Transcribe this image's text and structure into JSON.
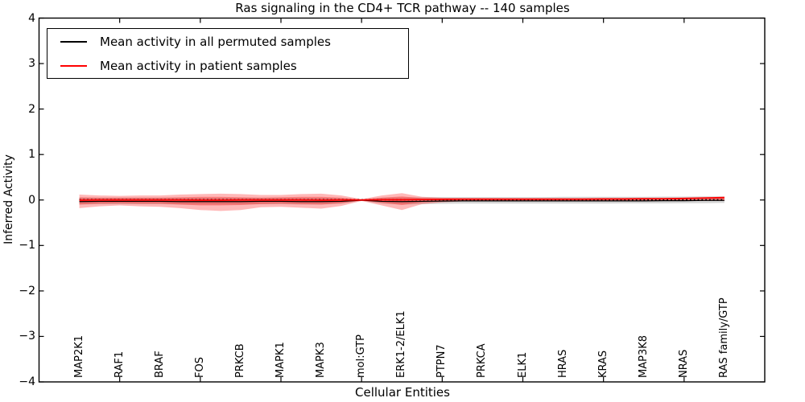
{
  "figure": {
    "title": "Ras signaling in the CD4+ TCR pathway -- 140 samples",
    "xlabel": "Cellular Entities",
    "ylabel": "Inferred Activity"
  },
  "legend": {
    "items": [
      {
        "label": "Mean activity in all permuted samples",
        "color": "#000000"
      },
      {
        "label": "Mean activity in patient samples",
        "color": "#ff0000"
      }
    ]
  },
  "chart_data": {
    "type": "line",
    "title": "Ras signaling in the CD4+ TCR pathway -- 140 samples",
    "xlabel": "Cellular Entities",
    "ylabel": "Inferred Activity",
    "ylim": [
      -4,
      4
    ],
    "xlim": [
      0,
      18
    ],
    "grid": false,
    "legend_position": "upper left",
    "yticks": [
      {
        "v": 4,
        "label": "4"
      },
      {
        "v": 3,
        "label": "3"
      },
      {
        "v": 2,
        "label": "2"
      },
      {
        "v": 1,
        "label": "1"
      },
      {
        "v": 0,
        "label": "0"
      },
      {
        "v": -1,
        "label": "−1"
      },
      {
        "v": -2,
        "label": "−2"
      },
      {
        "v": -3,
        "label": "−3"
      },
      {
        "v": -4,
        "label": "−4"
      }
    ],
    "xticks_frame": [
      2,
      4,
      6,
      8,
      10,
      12,
      14,
      16
    ],
    "entities": [
      {
        "pos": 1,
        "label": "MAP2K1"
      },
      {
        "pos": 2,
        "label": "RAF1"
      },
      {
        "pos": 3,
        "label": "BRAF"
      },
      {
        "pos": 4,
        "label": "FOS"
      },
      {
        "pos": 5,
        "label": "PRKCB"
      },
      {
        "pos": 6,
        "label": "MAPK1"
      },
      {
        "pos": 7,
        "label": "MAPK3"
      },
      {
        "pos": 8,
        "label": "mol:GTP"
      },
      {
        "pos": 9,
        "label": "ERK1-2/ELK1"
      },
      {
        "pos": 10,
        "label": "PTPN7"
      },
      {
        "pos": 11,
        "label": "PRKCA"
      },
      {
        "pos": 12,
        "label": "ELK1"
      },
      {
        "pos": 13,
        "label": "HRAS"
      },
      {
        "pos": 14,
        "label": "KRAS"
      },
      {
        "pos": 15,
        "label": "MAP3K8"
      },
      {
        "pos": 16,
        "label": "NRAS"
      },
      {
        "pos": 17,
        "label": "RAS family/GTP"
      }
    ],
    "x": [
      1,
      1.5,
      2,
      2.5,
      3,
      3.5,
      4,
      4.5,
      5,
      5.5,
      6,
      6.5,
      7,
      7.5,
      8,
      8.5,
      9,
      9.5,
      10,
      10.5,
      11,
      11.5,
      12,
      12.5,
      13,
      13.5,
      14,
      14.5,
      15,
      15.5,
      16,
      16.5,
      17
    ],
    "series": [
      {
        "name": "permuted_band",
        "kind": "band",
        "upper": [
          0.05,
          0.05,
          0.05,
          0.05,
          0.05,
          0.05,
          0.05,
          0.05,
          0.05,
          0.05,
          0.05,
          0.05,
          0.05,
          0.04,
          0.01,
          0.05,
          0.06,
          0.06,
          0.065,
          0.065,
          0.065,
          0.065,
          0.065,
          0.065,
          0.07,
          0.07,
          0.07,
          0.07,
          0.07,
          0.075,
          0.075,
          0.08,
          0.08
        ],
        "lower": [
          -0.1,
          -0.09,
          -0.09,
          -0.09,
          -0.09,
          -0.1,
          -0.1,
          -0.1,
          -0.1,
          -0.09,
          -0.09,
          -0.1,
          -0.1,
          -0.08,
          -0.015,
          -0.08,
          -0.1,
          -0.09,
          -0.085,
          -0.08,
          -0.08,
          -0.08,
          -0.08,
          -0.08,
          -0.08,
          -0.08,
          -0.08,
          -0.075,
          -0.075,
          -0.075,
          -0.07,
          -0.07,
          -0.065
        ]
      },
      {
        "name": "patient_band_outer",
        "kind": "band",
        "upper": [
          0.12,
          0.1,
          0.09,
          0.1,
          0.1,
          0.12,
          0.13,
          0.14,
          0.13,
          0.11,
          0.11,
          0.13,
          0.14,
          0.1,
          0.02,
          0.1,
          0.15,
          0.07,
          0.05,
          0.04,
          0.04,
          0.035,
          0.035,
          0.035,
          0.035,
          0.035,
          0.035,
          0.035,
          0.04,
          0.04,
          0.045,
          0.05,
          0.06
        ],
        "lower": [
          -0.18,
          -0.14,
          -0.12,
          -0.14,
          -0.15,
          -0.18,
          -0.22,
          -0.24,
          -0.22,
          -0.16,
          -0.15,
          -0.17,
          -0.19,
          -0.13,
          -0.02,
          -0.12,
          -0.22,
          -0.09,
          -0.05,
          -0.03,
          -0.03,
          -0.025,
          -0.02,
          -0.02,
          -0.02,
          -0.02,
          -0.02,
          -0.02,
          -0.02,
          -0.015,
          -0.015,
          -0.01,
          -0.01
        ]
      },
      {
        "name": "patient_band_inner",
        "kind": "band",
        "upper": [
          0.06,
          0.05,
          0.05,
          0.05,
          0.05,
          0.06,
          0.07,
          0.07,
          0.06,
          0.05,
          0.06,
          0.07,
          0.07,
          0.05,
          0.01,
          0.05,
          0.08,
          0.04,
          0.03,
          0.03,
          0.03,
          0.03,
          0.03,
          0.03,
          0.03,
          0.03,
          0.03,
          0.03,
          0.03,
          0.03,
          0.035,
          0.04,
          0.05
        ],
        "lower": [
          -0.1,
          -0.08,
          -0.07,
          -0.08,
          -0.08,
          -0.1,
          -0.12,
          -0.12,
          -0.11,
          -0.09,
          -0.08,
          -0.09,
          -0.1,
          -0.07,
          -0.01,
          -0.06,
          -0.11,
          -0.05,
          -0.03,
          -0.02,
          -0.02,
          -0.015,
          -0.01,
          -0.01,
          -0.01,
          -0.01,
          -0.01,
          -0.01,
          -0.01,
          -0.01,
          -0.01,
          -0.005,
          0.0
        ]
      },
      {
        "name": "permuted_mean",
        "kind": "line",
        "values": [
          -0.035,
          -0.03,
          -0.03,
          -0.03,
          -0.03,
          -0.035,
          -0.035,
          -0.035,
          -0.035,
          -0.03,
          -0.03,
          -0.035,
          -0.035,
          -0.03,
          -0.005,
          -0.03,
          -0.035,
          -0.03,
          -0.025,
          -0.02,
          -0.02,
          -0.02,
          -0.02,
          -0.02,
          -0.02,
          -0.02,
          -0.02,
          -0.02,
          -0.02,
          -0.015,
          -0.015,
          -0.01,
          -0.01
        ]
      },
      {
        "name": "permuted_marker_dots",
        "kind": "dashed",
        "level": 0.005
      },
      {
        "name": "patient_mean",
        "kind": "line",
        "values": [
          -0.005,
          0.0,
          0.0,
          0.0,
          0.0,
          0.0,
          -0.005,
          -0.005,
          0.0,
          0.0,
          0.0,
          0.0,
          -0.005,
          0.0,
          0.0,
          0.005,
          0.005,
          0.01,
          0.015,
          0.02,
          0.02,
          0.02,
          0.02,
          0.02,
          0.02,
          0.02,
          0.025,
          0.025,
          0.03,
          0.03,
          0.035,
          0.045,
          0.055
        ]
      }
    ],
    "colors": {
      "frame": "#000000",
      "permuted_line": "#000000",
      "patient_line": "#ff0000",
      "patient_fill": "#ff0000",
      "patient_fill_alpha": 0.28,
      "permuted_fill": "#787878",
      "permuted_fill_alpha": 0.3
    }
  }
}
